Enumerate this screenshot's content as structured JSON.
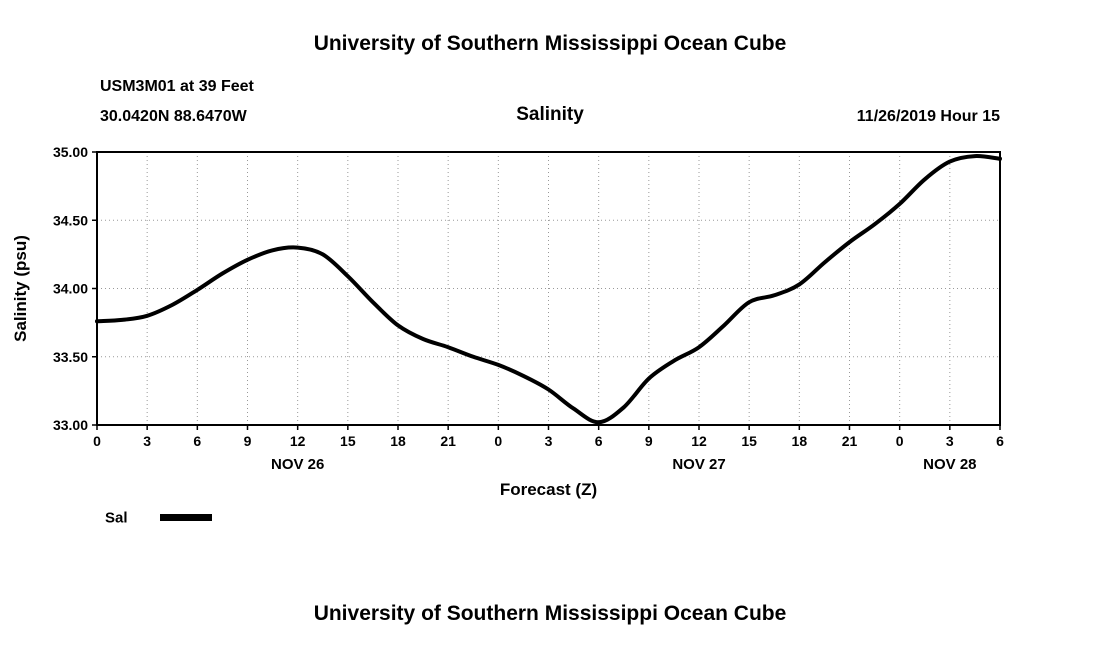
{
  "page": {
    "top_title": "University of Southern Mississippi Ocean Cube",
    "bottom_title": "University of Southern Mississippi Ocean Cube"
  },
  "header": {
    "station_line1": "USM3M01 at 39 Feet",
    "station_line2": "30.0420N 88.6470W",
    "chart_title": "Salinity",
    "datetime": "11/26/2019 Hour 15"
  },
  "legend": {
    "label": "Sal",
    "line_color": "#000000"
  },
  "chart_data": {
    "type": "line",
    "title": "Salinity",
    "xlabel": "Forecast (Z)",
    "ylabel": "Salinity (psu)",
    "xlim": [
      0,
      54
    ],
    "ylim": [
      33.0,
      35.0
    ],
    "grid": true,
    "legend_position": "bottom-left",
    "x_ticks": [
      0,
      3,
      6,
      9,
      12,
      15,
      18,
      21,
      24,
      27,
      30,
      33,
      36,
      39,
      42,
      45,
      48,
      51,
      54
    ],
    "x_tick_labels": [
      "0",
      "3",
      "6",
      "9",
      "12",
      "15",
      "18",
      "21",
      "0",
      "3",
      "6",
      "9",
      "12",
      "15",
      "18",
      "21",
      "0",
      "3",
      "6"
    ],
    "y_ticks": [
      33.0,
      33.5,
      34.0,
      34.5,
      35.0
    ],
    "y_tick_labels": [
      "33.00",
      "33.50",
      "34.00",
      "34.50",
      "35.00"
    ],
    "day_labels": [
      {
        "label": "NOV 26",
        "x": 12
      },
      {
        "label": "NOV 27",
        "x": 36
      },
      {
        "label": "NOV 28",
        "x": 51
      }
    ],
    "line_color": "#000000",
    "series": [
      {
        "name": "Sal",
        "x": [
          0,
          1.5,
          3,
          4.5,
          6,
          7.5,
          9,
          10.5,
          12,
          13.5,
          15,
          16.5,
          18,
          19.5,
          21,
          22.5,
          24,
          25.5,
          27,
          28.5,
          30,
          31.5,
          33,
          34.5,
          36,
          37.5,
          39,
          40.5,
          42,
          43.5,
          45,
          46.5,
          48,
          49.5,
          51,
          52.5,
          54
        ],
        "y": [
          33.76,
          33.77,
          33.8,
          33.88,
          33.99,
          34.11,
          34.21,
          34.28,
          34.3,
          34.25,
          34.09,
          33.9,
          33.73,
          33.63,
          33.57,
          33.5,
          33.44,
          33.36,
          33.26,
          33.12,
          33.02,
          33.13,
          33.34,
          33.47,
          33.57,
          33.73,
          33.9,
          33.95,
          34.03,
          34.19,
          34.34,
          34.47,
          34.62,
          34.8,
          34.93,
          34.97,
          34.95
        ]
      }
    ]
  }
}
